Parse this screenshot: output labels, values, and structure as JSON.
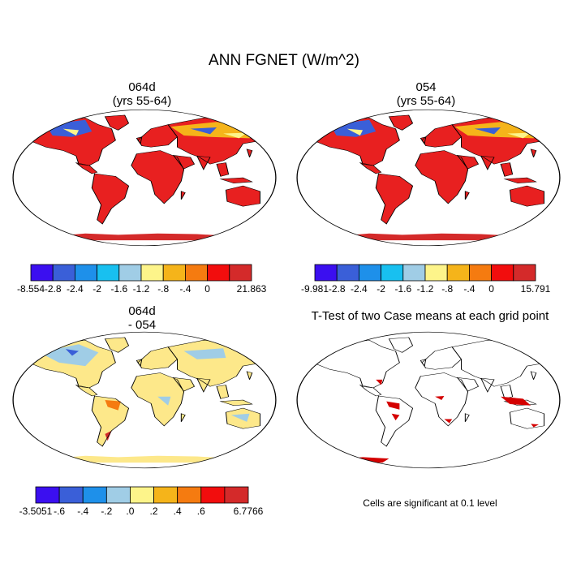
{
  "title": "ANN FGNET (W/m^2)",
  "panels": [
    {
      "line1": "064d",
      "line2": "(yrs 55-64)",
      "kind": "field"
    },
    {
      "line1": "054",
      "line2": "(yrs 55-64)",
      "kind": "field"
    },
    {
      "line1": "064d",
      "line2": "- 054",
      "kind": "difference"
    },
    {
      "line1": "T-Test of two Case means at each grid point",
      "kind": "ttest"
    }
  ],
  "colorbars": [
    {
      "colors": [
        "#3b0ff0",
        "#3a5fd8",
        "#1e90ea",
        "#18c0f0",
        "#a0cde6",
        "#fdf48a",
        "#f5b41a",
        "#f57b10",
        "#f20d0d",
        "#d42a2a"
      ],
      "labels": [
        "-8.554",
        "-2.8",
        "-2.4",
        "-2",
        "-1.6",
        "-1.2",
        "-.8",
        "-.4",
        "0",
        "21.863"
      ]
    },
    {
      "colors": [
        "#3b0ff0",
        "#3a5fd8",
        "#1e90ea",
        "#18c0f0",
        "#a0cde6",
        "#fdf48a",
        "#f5b41a",
        "#f57b10",
        "#f20d0d",
        "#d42a2a"
      ],
      "labels": [
        "-9.981",
        "-2.8",
        "-2.4",
        "-2",
        "-1.6",
        "-1.2",
        "-.8",
        "-.4",
        "0",
        "15.791"
      ]
    },
    {
      "colors": [
        "#3b0ff0",
        "#3a5fd8",
        "#1e90ea",
        "#a0cde6",
        "#fdf48a",
        "#f5b41a",
        "#f57b10",
        "#f20d0d",
        "#d42a2a"
      ],
      "labels": [
        "-3.5051",
        "-.6",
        "-.4",
        "-.2",
        ".0",
        ".2",
        ".4",
        ".6",
        "6.7766"
      ]
    }
  ],
  "note": "Cells are significant at 0.1 level",
  "colors": {
    "land_warm": "#e82020",
    "antarctica": "#d42a2a",
    "diff_land": "#fde88a",
    "signif": "#d40000",
    "ocean": "#ffffff"
  }
}
